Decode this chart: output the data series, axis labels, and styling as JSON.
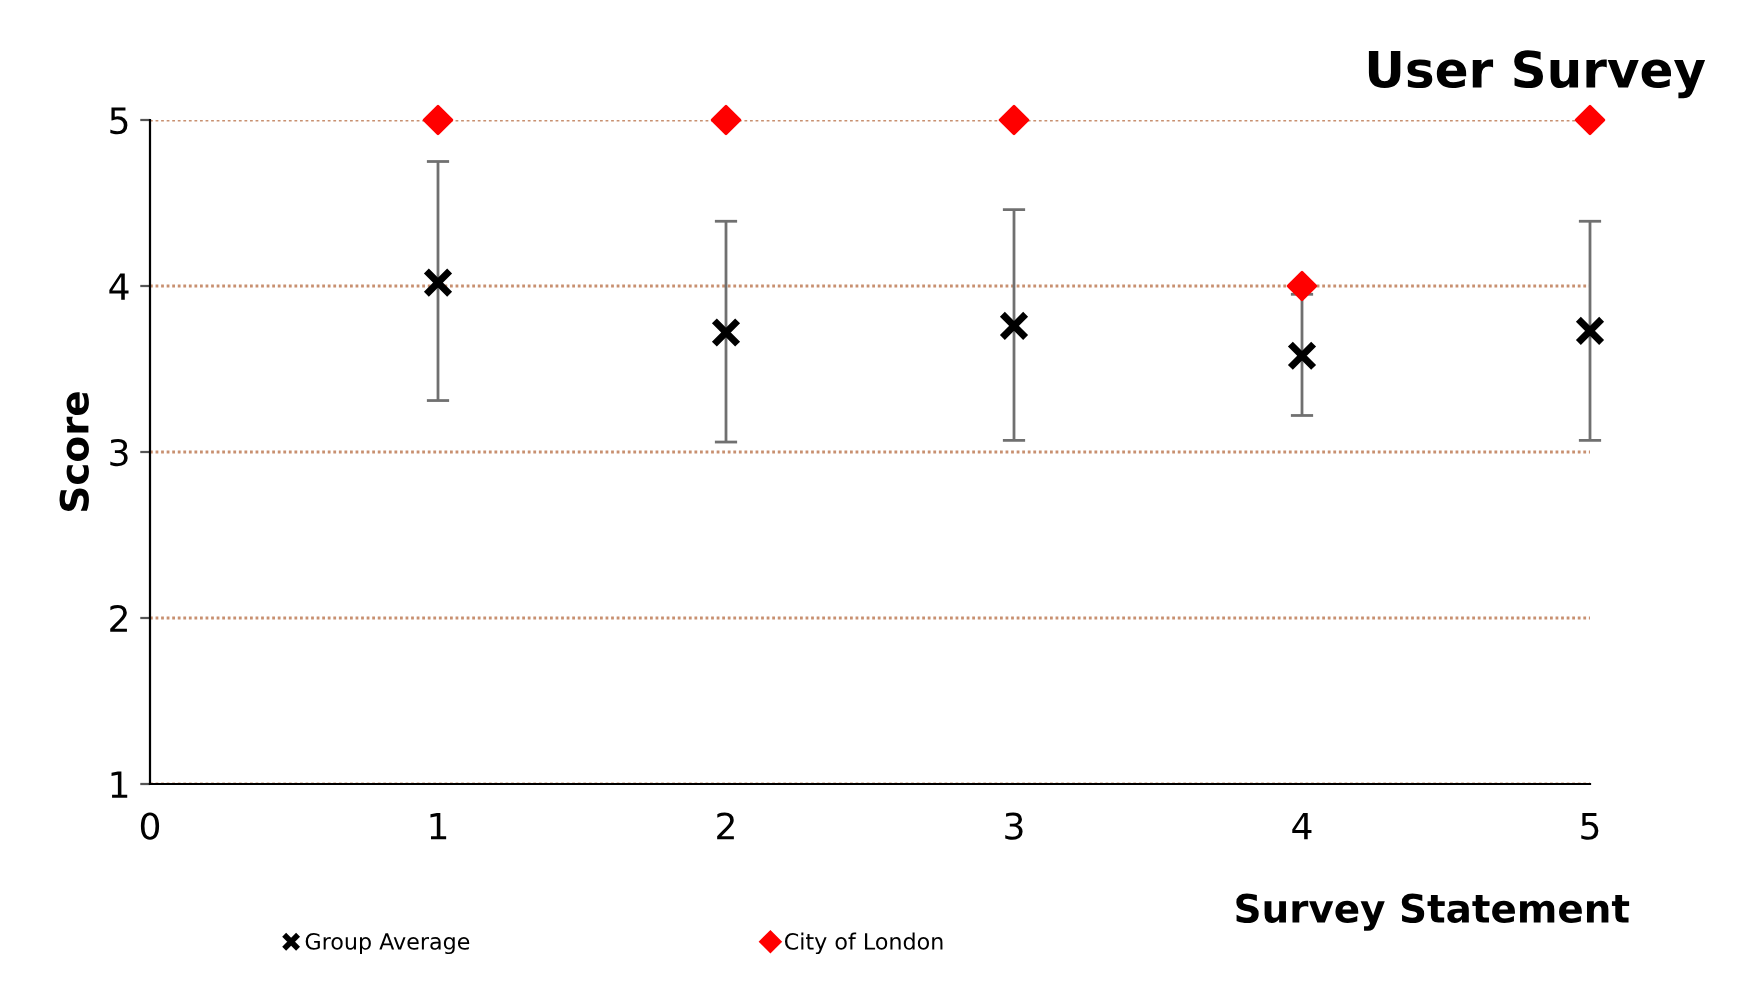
{
  "chart_data": {
    "type": "scatter",
    "title": "User Survey",
    "xlabel": "Survey Statement",
    "ylabel": "Score",
    "xlim": [
      0,
      5
    ],
    "xticks": [
      0,
      1,
      2,
      3,
      4,
      5
    ],
    "ylim": [
      1,
      5
    ],
    "yticks": [
      1,
      2,
      3,
      4,
      5
    ],
    "grid": "y",
    "legend": "bottom",
    "series": [
      {
        "name": "Group Average",
        "color": "#000000",
        "marker": "cross",
        "x": [
          1,
          2,
          3,
          4,
          5
        ],
        "values": [
          4.02,
          3.72,
          3.76,
          3.58,
          3.73
        ],
        "errors": [
          [
            3.31,
            4.75
          ],
          [
            3.06,
            4.39
          ],
          [
            3.07,
            4.46
          ],
          [
            3.22,
            3.95
          ],
          [
            3.07,
            4.39
          ]
        ]
      },
      {
        "name": "City of London",
        "color": "#ff0000",
        "marker": "diamond",
        "x": [
          1,
          2,
          3,
          4,
          5
        ],
        "values": [
          5,
          5,
          5,
          4,
          5
        ]
      }
    ]
  }
}
